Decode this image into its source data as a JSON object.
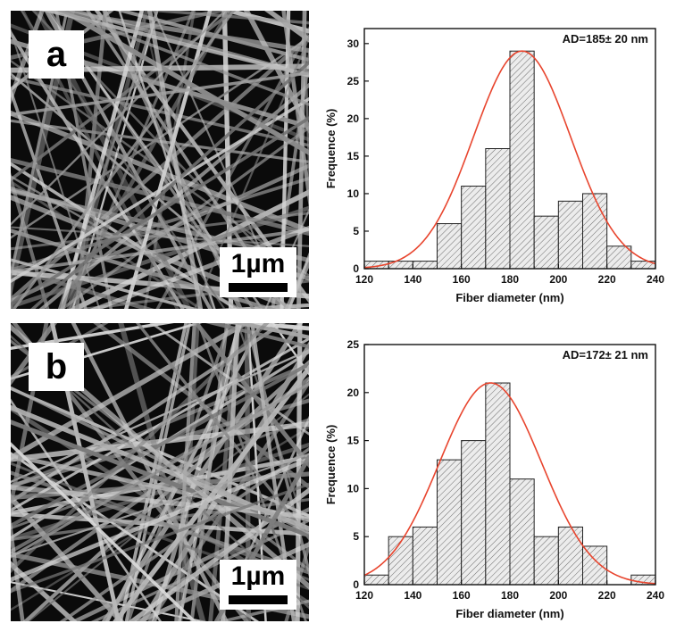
{
  "panels": [
    {
      "label": "a",
      "scalebar": "1µm"
    },
    {
      "label": "b",
      "scalebar": "1µm"
    }
  ],
  "colors": {
    "fit": "#e8452e",
    "bar_fill": "#ececec",
    "hatch": "#6a6a6a",
    "frame": "#111111"
  },
  "chart_data": [
    {
      "type": "bar",
      "title": "",
      "xlabel": "Fiber diameter (nm)",
      "ylabel": "Frequence (%)",
      "annotation": "AD=185± 20 nm",
      "bin_width": 10,
      "x": [
        125,
        135,
        145,
        155,
        165,
        175,
        185,
        195,
        205,
        215,
        225,
        235
      ],
      "values": [
        1,
        1,
        1,
        6,
        11,
        16,
        29,
        7,
        9,
        10,
        3,
        1
      ],
      "fit": {
        "type": "gaussian",
        "mean": 185,
        "peak": 29,
        "sigma": 20
      },
      "xlim": [
        120,
        240
      ],
      "ylim": [
        0,
        32
      ],
      "xticks": [
        120,
        140,
        160,
        180,
        200,
        220,
        240
      ],
      "yticks": [
        0,
        5,
        10,
        15,
        20,
        25,
        30
      ],
      "grid": false
    },
    {
      "type": "bar",
      "title": "",
      "xlabel": "Fiber diameter (nm)",
      "ylabel": "Frequence (%)",
      "annotation": "AD=172± 21 nm",
      "bin_width": 10,
      "x": [
        125,
        135,
        145,
        155,
        165,
        175,
        185,
        195,
        205,
        215,
        225,
        235
      ],
      "values": [
        1,
        5,
        6,
        13,
        15,
        21,
        11,
        5,
        6,
        4,
        0,
        1
      ],
      "fit": {
        "type": "gaussian",
        "mean": 172,
        "peak": 21,
        "sigma": 21
      },
      "xlim": [
        120,
        240
      ],
      "ylim": [
        0,
        25
      ],
      "xticks": [
        120,
        140,
        160,
        180,
        200,
        220,
        240
      ],
      "yticks": [
        0,
        5,
        10,
        15,
        20,
        25
      ],
      "grid": false
    }
  ]
}
